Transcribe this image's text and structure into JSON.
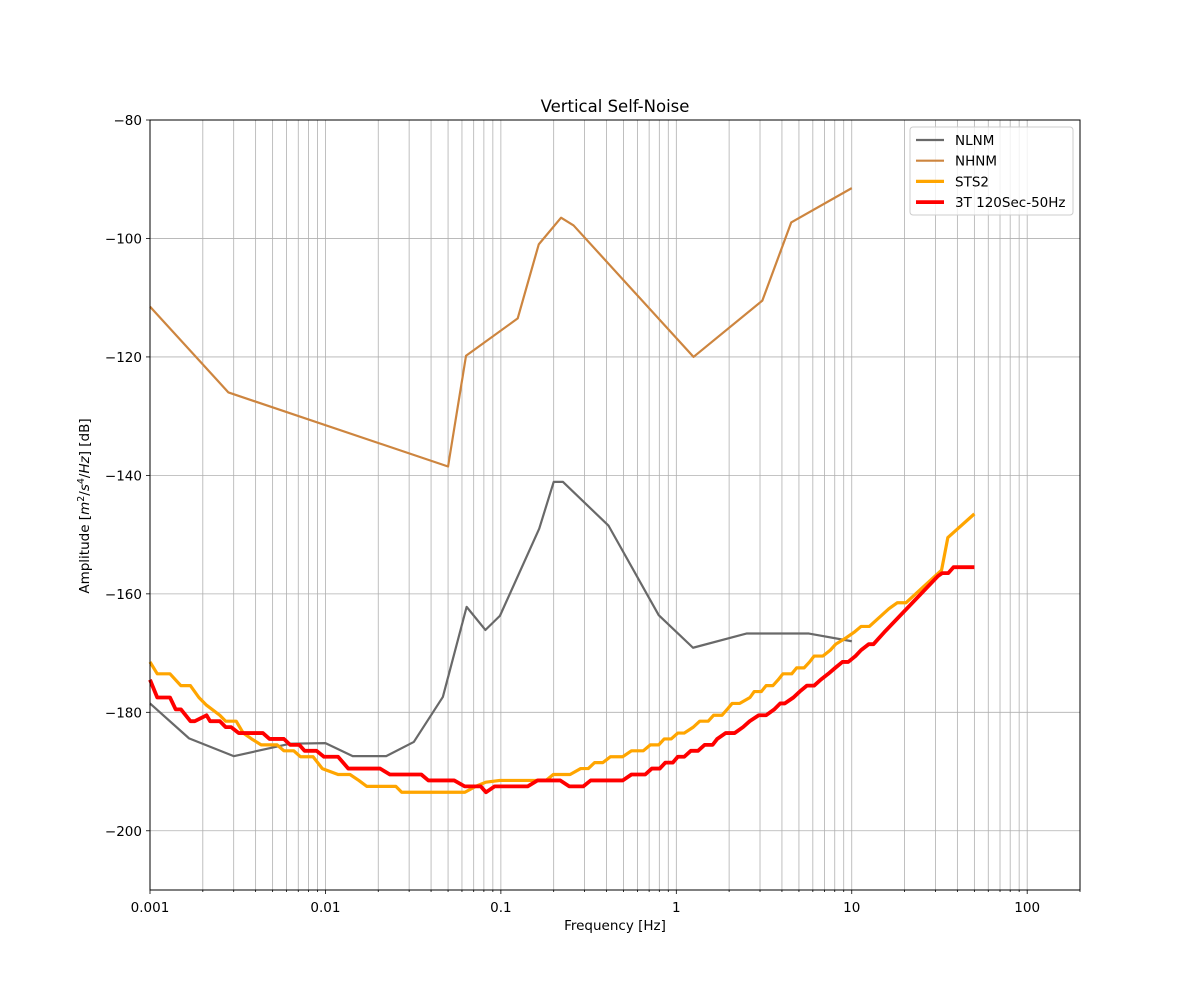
{
  "chart_data": {
    "type": "line",
    "title": "Vertical Self-Noise",
    "xlabel": "Frequency [Hz]",
    "ylabel_parts": [
      "Amplitude [",
      "m",
      "2",
      "/",
      "s",
      "4",
      "/",
      "Hz",
      "] [dB]"
    ],
    "x_scale": "log",
    "xlim": [
      0.001,
      200
    ],
    "ylim": [
      -210,
      -80
    ],
    "grid": true,
    "legend_position": "top-right",
    "x_ticks": [
      {
        "value": 0.001,
        "label": "0.001"
      },
      {
        "value": 0.01,
        "label": "0.01"
      },
      {
        "value": 0.1,
        "label": "0.1"
      },
      {
        "value": 1,
        "label": "1"
      },
      {
        "value": 10,
        "label": "10"
      },
      {
        "value": 100,
        "label": "100"
      }
    ],
    "y_ticks": [
      {
        "value": -80,
        "label": "−80"
      },
      {
        "value": -100,
        "label": "−100"
      },
      {
        "value": -120,
        "label": "−120"
      },
      {
        "value": -140,
        "label": "−140"
      },
      {
        "value": -160,
        "label": "−160"
      },
      {
        "value": -180,
        "label": "−180"
      },
      {
        "value": -200,
        "label": "−200"
      }
    ],
    "series": [
      {
        "name": "NLNM",
        "color": "#696969",
        "width": 2.2,
        "points": [
          [
            0.001,
            -178.5
          ],
          [
            0.00167,
            -184.4
          ],
          [
            0.003,
            -187.4
          ],
          [
            0.0063,
            -185.3
          ],
          [
            0.01,
            -185.2
          ],
          [
            0.0143,
            -187.4
          ],
          [
            0.0222,
            -187.4
          ],
          [
            0.0319,
            -185
          ],
          [
            0.0467,
            -177.4
          ],
          [
            0.0638,
            -162.2
          ],
          [
            0.0816,
            -166.1
          ],
          [
            0.0988,
            -163.7
          ],
          [
            0.1654,
            -149
          ],
          [
            0.2,
            -141.1
          ],
          [
            0.226,
            -141.1
          ],
          [
            0.411,
            -148.5
          ],
          [
            0.794,
            -163.6
          ],
          [
            1.245,
            -169.1
          ],
          [
            2.51,
            -166.7
          ],
          [
            5.7,
            -166.7
          ],
          [
            10,
            -168
          ]
        ]
      },
      {
        "name": "NHNM",
        "color": "#cd853f",
        "width": 2.2,
        "points": [
          [
            0.001,
            -111.5
          ],
          [
            0.0028,
            -126
          ],
          [
            0.05,
            -138.5
          ],
          [
            0.0633,
            -119.8
          ],
          [
            0.1247,
            -113.5
          ],
          [
            0.1644,
            -101
          ],
          [
            0.2203,
            -96.5
          ],
          [
            0.2597,
            -97.8
          ],
          [
            1.253,
            -120
          ],
          [
            3.093,
            -110.5
          ],
          [
            4.517,
            -97.3
          ],
          [
            10,
            -91.5
          ]
        ]
      },
      {
        "name": "STS2",
        "color": "#ffa500",
        "width": 3.2,
        "points": [
          [
            0.001,
            -171.5
          ],
          [
            0.0011,
            -173.5
          ],
          [
            0.0013,
            -173.5
          ],
          [
            0.0015,
            -175.5
          ],
          [
            0.0017,
            -175.5
          ],
          [
            0.0019,
            -177.5
          ],
          [
            0.0021,
            -178.8
          ],
          [
            0.0025,
            -180.5
          ],
          [
            0.0027,
            -181.5
          ],
          [
            0.0031,
            -181.5
          ],
          [
            0.0034,
            -183.5
          ],
          [
            0.0038,
            -184.5
          ],
          [
            0.0043,
            -185.5
          ],
          [
            0.0053,
            -185.5
          ],
          [
            0.0058,
            -186.5
          ],
          [
            0.0066,
            -186.5
          ],
          [
            0.0072,
            -187.5
          ],
          [
            0.0085,
            -187.5
          ],
          [
            0.0096,
            -189.5
          ],
          [
            0.0118,
            -190.5
          ],
          [
            0.0138,
            -190.5
          ],
          [
            0.0155,
            -191.5
          ],
          [
            0.0172,
            -192.5
          ],
          [
            0.0252,
            -192.5
          ],
          [
            0.0272,
            -193.5
          ],
          [
            0.0624,
            -193.5
          ],
          [
            0.0718,
            -192.5
          ],
          [
            0.0821,
            -191.8
          ],
          [
            0.0986,
            -191.5
          ],
          [
            0.181,
            -191.5
          ],
          [
            0.199,
            -190.5
          ],
          [
            0.248,
            -190.5
          ],
          [
            0.285,
            -189.5
          ],
          [
            0.315,
            -189.5
          ],
          [
            0.342,
            -188.5
          ],
          [
            0.381,
            -188.5
          ],
          [
            0.421,
            -187.5
          ],
          [
            0.495,
            -187.5
          ],
          [
            0.555,
            -186.5
          ],
          [
            0.648,
            -186.5
          ],
          [
            0.711,
            -185.5
          ],
          [
            0.794,
            -185.5
          ],
          [
            0.853,
            -184.5
          ],
          [
            0.935,
            -184.5
          ],
          [
            1.02,
            -183.5
          ],
          [
            1.11,
            -183.5
          ],
          [
            1.25,
            -182.5
          ],
          [
            1.36,
            -181.5
          ],
          [
            1.52,
            -181.5
          ],
          [
            1.63,
            -180.5
          ],
          [
            1.82,
            -180.5
          ],
          [
            1.95,
            -179.5
          ],
          [
            2.08,
            -178.5
          ],
          [
            2.3,
            -178.5
          ],
          [
            2.63,
            -177.5
          ],
          [
            2.78,
            -176.5
          ],
          [
            3.05,
            -176.5
          ],
          [
            3.25,
            -175.5
          ],
          [
            3.55,
            -175.5
          ],
          [
            3.81,
            -174.5
          ],
          [
            4.05,
            -173.5
          ],
          [
            4.55,
            -173.5
          ],
          [
            4.85,
            -172.5
          ],
          [
            5.35,
            -172.5
          ],
          [
            5.75,
            -171.5
          ],
          [
            6.1,
            -170.5
          ],
          [
            6.85,
            -170.5
          ],
          [
            7.55,
            -169.5
          ],
          [
            8.1,
            -168.5
          ],
          [
            9.2,
            -167.5
          ],
          [
            10.3,
            -166.5
          ],
          [
            11.3,
            -165.5
          ],
          [
            12.6,
            -165.5
          ],
          [
            16.3,
            -162.5
          ],
          [
            18.2,
            -161.5
          ],
          [
            20.4,
            -161.5
          ],
          [
            32.5,
            -156
          ],
          [
            35.3,
            -150.5
          ],
          [
            50,
            -146.5
          ]
        ]
      },
      {
        "name": "3T 120Sec-50Hz",
        "color": "#ff0000",
        "width": 3.8,
        "points": [
          [
            0.001,
            -174.5
          ],
          [
            0.0011,
            -177.5
          ],
          [
            0.0013,
            -177.5
          ],
          [
            0.0014,
            -179.5
          ],
          [
            0.0015,
            -179.5
          ],
          [
            0.0017,
            -181.5
          ],
          [
            0.0018,
            -181.5
          ],
          [
            0.0021,
            -180.5
          ],
          [
            0.0022,
            -181.5
          ],
          [
            0.0025,
            -181.5
          ],
          [
            0.0027,
            -182.5
          ],
          [
            0.0029,
            -182.5
          ],
          [
            0.0032,
            -183.5
          ],
          [
            0.0044,
            -183.5
          ],
          [
            0.0048,
            -184.5
          ],
          [
            0.0058,
            -184.5
          ],
          [
            0.0063,
            -185.5
          ],
          [
            0.0071,
            -185.5
          ],
          [
            0.0076,
            -186.5
          ],
          [
            0.0089,
            -186.5
          ],
          [
            0.0098,
            -187.5
          ],
          [
            0.0118,
            -187.5
          ],
          [
            0.0135,
            -189.5
          ],
          [
            0.0205,
            -189.5
          ],
          [
            0.0233,
            -190.5
          ],
          [
            0.0352,
            -190.5
          ],
          [
            0.0386,
            -191.5
          ],
          [
            0.0542,
            -191.5
          ],
          [
            0.0622,
            -192.5
          ],
          [
            0.0768,
            -192.5
          ],
          [
            0.0822,
            -193.5
          ],
          [
            0.0922,
            -192.5
          ],
          [
            0.1422,
            -192.5
          ],
          [
            0.162,
            -191.5
          ],
          [
            0.218,
            -191.5
          ],
          [
            0.245,
            -192.5
          ],
          [
            0.295,
            -192.5
          ],
          [
            0.325,
            -191.5
          ],
          [
            0.495,
            -191.5
          ],
          [
            0.555,
            -190.5
          ],
          [
            0.665,
            -190.5
          ],
          [
            0.725,
            -189.5
          ],
          [
            0.805,
            -189.5
          ],
          [
            0.865,
            -188.5
          ],
          [
            0.955,
            -188.5
          ],
          [
            1.02,
            -187.5
          ],
          [
            1.11,
            -187.5
          ],
          [
            1.21,
            -186.5
          ],
          [
            1.33,
            -186.5
          ],
          [
            1.45,
            -185.5
          ],
          [
            1.61,
            -185.5
          ],
          [
            1.71,
            -184.5
          ],
          [
            1.91,
            -183.5
          ],
          [
            2.15,
            -183.5
          ],
          [
            2.4,
            -182.5
          ],
          [
            2.62,
            -181.5
          ],
          [
            2.95,
            -180.5
          ],
          [
            3.25,
            -180.5
          ],
          [
            3.62,
            -179.5
          ],
          [
            3.91,
            -178.5
          ],
          [
            4.15,
            -178.5
          ],
          [
            4.65,
            -177.5
          ],
          [
            5.05,
            -176.5
          ],
          [
            5.55,
            -175.5
          ],
          [
            6.1,
            -175.5
          ],
          [
            6.65,
            -174.5
          ],
          [
            7.35,
            -173.5
          ],
          [
            8.05,
            -172.5
          ],
          [
            8.85,
            -171.5
          ],
          [
            9.55,
            -171.5
          ],
          [
            10.5,
            -170.5
          ],
          [
            11.3,
            -169.5
          ],
          [
            12.5,
            -168.5
          ],
          [
            13.3,
            -168.5
          ],
          [
            15.3,
            -166.5
          ],
          [
            31,
            -157
          ],
          [
            32.8,
            -156.5
          ],
          [
            35.5,
            -156.5
          ],
          [
            38,
            -155.5
          ],
          [
            50,
            -155.5
          ]
        ]
      }
    ]
  }
}
